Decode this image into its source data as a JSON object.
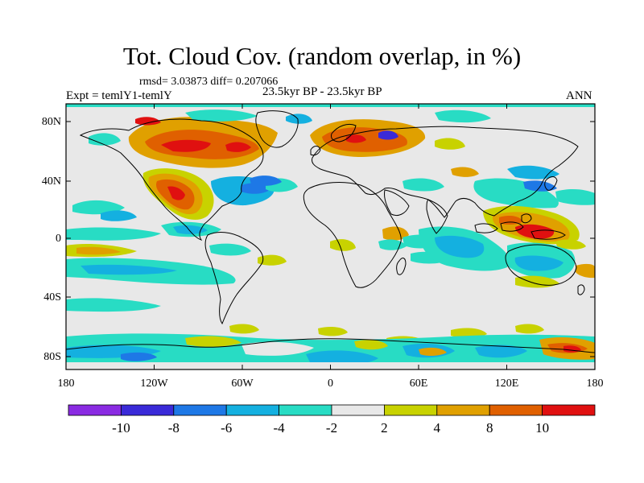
{
  "title": "Tot. Cloud Cov. (random overlap, in %)",
  "stats": "rmsd= 3.03873 diff= 0.207066",
  "expt": "Expt = temlY1-temlY",
  "period": "23.5kyr BP - 23.5kyr BP",
  "season": "ANN",
  "lon_ticks": [
    "180",
    "120W",
    "60W",
    "0",
    "60E",
    "120E",
    "180"
  ],
  "lat_ticks": [
    "80N",
    "40N",
    "0",
    "40S",
    "80S"
  ],
  "colorbar": {
    "labels": [
      "-10",
      "-8",
      "-6",
      "-4",
      "-2",
      "2",
      "4",
      "8",
      "10"
    ],
    "colors": [
      "#8a2be2",
      "#3a2ad8",
      "#1e78e6",
      "#14b0e0",
      "#28dcc4",
      "#e8e8e8",
      "#c8d200",
      "#e0a000",
      "#e06000",
      "#e01010"
    ]
  }
}
